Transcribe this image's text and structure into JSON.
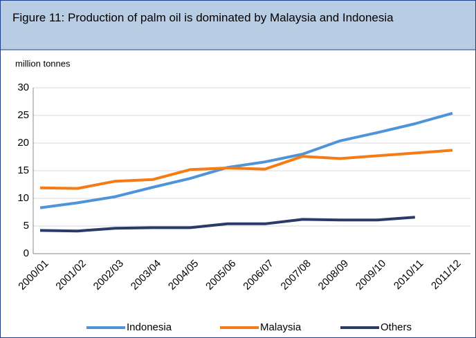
{
  "chart_data": {
    "type": "line",
    "title": "Figure 11: Production of palm oil is dominated by Malaysia and Indonesia",
    "y_label": "million tonnes",
    "categories": [
      "2000/01",
      "2001/02",
      "2002/03",
      "2003/04",
      "2004/05",
      "2005/06",
      "2006/07",
      "2007/08",
      "2008/09",
      "2009/10",
      "2010/11",
      "2011/12"
    ],
    "series": [
      {
        "name": "Indonesia",
        "color": "#4f94d8",
        "values": [
          8.3,
          9.2,
          10.3,
          12.0,
          13.6,
          15.6,
          16.6,
          18.0,
          20.4,
          21.9,
          23.5,
          25.4
        ]
      },
      {
        "name": "Malaysia",
        "color": "#f57c14",
        "values": [
          11.9,
          11.8,
          13.1,
          13.4,
          15.2,
          15.5,
          15.3,
          17.6,
          17.2,
          17.7,
          18.2,
          18.7
        ]
      },
      {
        "name": "Others",
        "color": "#2b3a67",
        "values": [
          4.2,
          4.1,
          4.6,
          4.7,
          4.7,
          5.4,
          5.4,
          6.2,
          6.1,
          6.1,
          6.6,
          null
        ]
      }
    ],
    "ylim": [
      0,
      30
    ],
    "yticks": [
      0,
      5,
      10,
      15,
      20,
      25,
      30
    ],
    "grid": true,
    "legend": "bottom"
  }
}
